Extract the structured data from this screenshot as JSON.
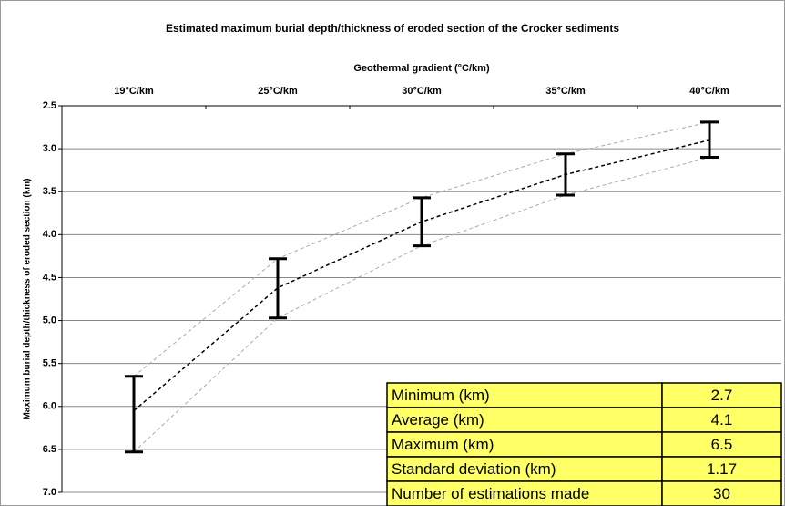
{
  "chart_data": {
    "type": "errorbar-line",
    "title": "Estimated maximum burial depth/thickness of eroded section of the Crocker sediments",
    "x_axis_label": "Geothermal gradient (°C/km)",
    "y_axis_label": "Maximum burial depth/thickness of eroded section (km)",
    "categories": [
      "19°C/km",
      "25°C/km",
      "30°C/km",
      "35°C/km",
      "40°C/km"
    ],
    "values": [
      6.05,
      4.62,
      3.85,
      3.3,
      2.9
    ],
    "range_low": [
      5.65,
      4.28,
      3.57,
      3.06,
      2.69
    ],
    "range_high": [
      6.53,
      4.97,
      4.13,
      3.54,
      3.1
    ],
    "color": "#000000",
    "range_color": "#aaaaaa",
    "ylim": [
      2.5,
      7.0
    ],
    "y_inverted": true,
    "yticks": [
      2.5,
      {
        "value": 3,
        "label": "3.0"
      },
      3.5,
      {
        "value": 4,
        "label": "4.0"
      },
      4.5,
      {
        "value": 5,
        "label": "5.0"
      },
      5.5,
      {
        "value": 6,
        "label": "6.0"
      },
      6.5,
      {
        "value": 7,
        "label": "7.0"
      }
    ],
    "grid": true
  },
  "table": {
    "rows": [
      [
        "Minimum (km)",
        2.7
      ],
      [
        "Average (km)",
        4.1
      ],
      [
        "Maximum (km)",
        6.5
      ],
      [
        "Standard deviation (km)",
        1.17
      ],
      [
        "Number of estimations made",
        30
      ]
    ]
  }
}
